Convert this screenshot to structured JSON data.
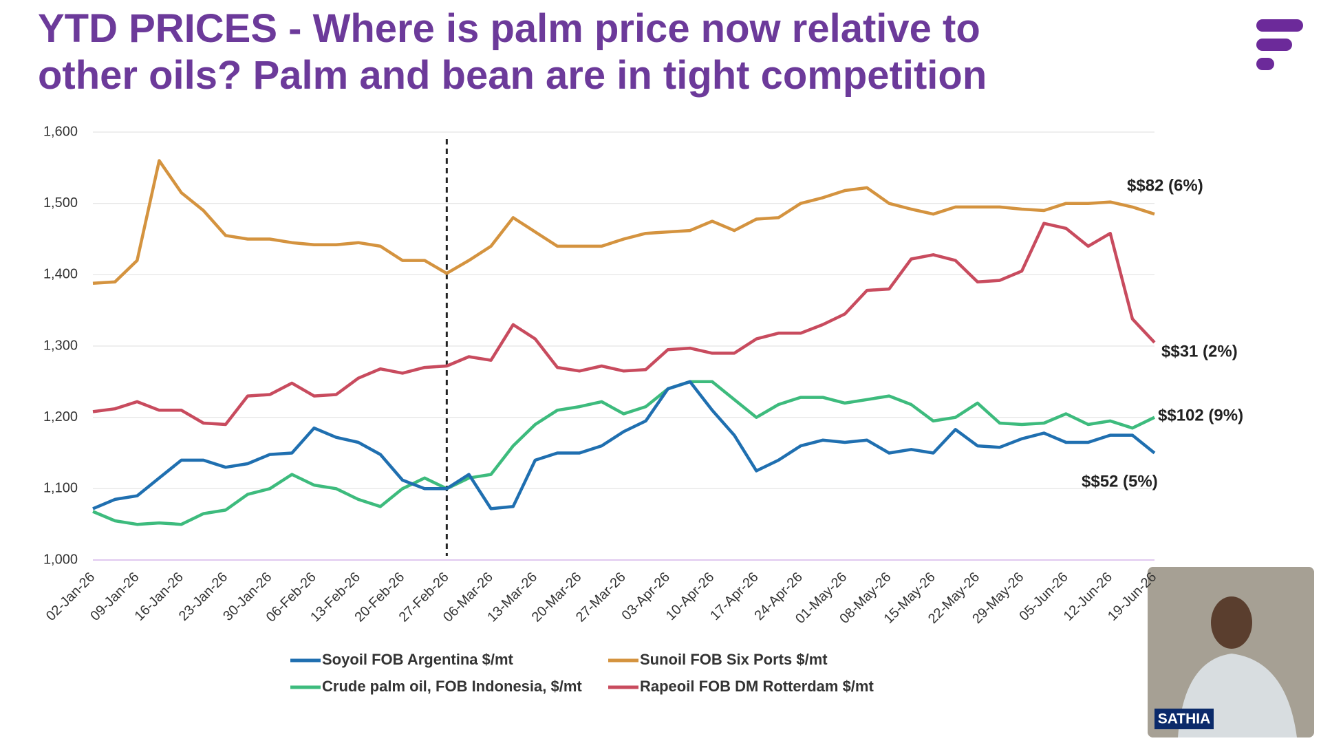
{
  "chart_data": {
    "type": "line",
    "title": [
      "YTD PRICES - Where is palm price now relative to",
      "other oils? Palm and bean are in tight competition"
    ],
    "categories": [
      "02-Jan-26",
      null,
      "09-Jan-26",
      null,
      "16-Jan-26",
      null,
      "23-Jan-26",
      null,
      "30-Jan-26",
      null,
      "06-Feb-26",
      null,
      "13-Feb-26",
      null,
      "20-Feb-26",
      null,
      "27-Feb-26",
      null,
      "06-Mar-26",
      null,
      "13-Mar-26",
      null,
      "20-Mar-26",
      null,
      "27-Mar-26",
      null,
      "03-Apr-26",
      null,
      "10-Apr-26",
      null,
      "17-Apr-26",
      null,
      "24-Apr-26",
      null,
      "01-May-26",
      null,
      "08-May-26",
      null,
      "15-May-26",
      null,
      "22-May-26",
      null,
      "29-May-26",
      null,
      "05-Jun-26",
      null,
      "12-Jun-26",
      null,
      "19-Jun-26"
    ],
    "series": [
      {
        "name": "Soyoil FOB Argentina $/mt",
        "color": "#1f6fb0",
        "values": [
          1072,
          1085,
          1090,
          1115,
          1140,
          1140,
          1130,
          1135,
          1148,
          1150,
          1185,
          1172,
          1165,
          1148,
          1112,
          1100,
          1100,
          1120,
          1072,
          1075,
          1140,
          1150,
          1150,
          1160,
          1180,
          1195,
          1240,
          1250,
          1210,
          1175,
          1125,
          1140,
          1160,
          1168,
          1165,
          1168,
          1150,
          1155,
          1150,
          1183,
          1160,
          1158,
          1170,
          1178,
          1165,
          1165,
          1175,
          1175,
          1150
        ]
      },
      {
        "name": "Sunoil FOB Six Ports $/mt",
        "color": "#d4933f",
        "values": [
          1388,
          1390,
          1420,
          1560,
          1515,
          1490,
          1455,
          1450,
          1450,
          1445,
          1442,
          1442,
          1445,
          1440,
          1420,
          1420,
          1402,
          1420,
          1440,
          1480,
          1460,
          1440,
          1440,
          1440,
          1450,
          1458,
          1460,
          1462,
          1475,
          1462,
          1478,
          1480,
          1500,
          1508,
          1518,
          1522,
          1500,
          1492,
          1485,
          1495,
          1495,
          1495,
          1492,
          1490,
          1500,
          1500,
          1502,
          1495,
          1485
        ]
      },
      {
        "name": "Crude palm oil, FOB Indonesia, $/mt",
        "color": "#3dbb7d",
        "values": [
          1068,
          1055,
          1050,
          1052,
          1050,
          1065,
          1070,
          1092,
          1100,
          1120,
          1105,
          1100,
          1085,
          1075,
          1100,
          1115,
          1100,
          1115,
          1120,
          1160,
          1190,
          1210,
          1215,
          1222,
          1205,
          1215,
          1240,
          1250,
          1250,
          1225,
          1200,
          1218,
          1228,
          1228,
          1220,
          1225,
          1230,
          1218,
          1195,
          1200,
          1220,
          1192,
          1190,
          1192,
          1205,
          1190,
          1195,
          1185,
          1200
        ]
      },
      {
        "name": "Rapeoil FOB DM Rotterdam $/mt",
        "color": "#c84b5e",
        "values": [
          1208,
          1212,
          1222,
          1210,
          1210,
          1192,
          1190,
          1230,
          1232,
          1248,
          1230,
          1232,
          1255,
          1268,
          1262,
          1270,
          1272,
          1285,
          1280,
          1330,
          1310,
          1270,
          1265,
          1272,
          1265,
          1267,
          1295,
          1297,
          1290,
          1290,
          1310,
          1318,
          1318,
          1330,
          1345,
          1378,
          1380,
          1422,
          1428,
          1420,
          1390,
          1392,
          1405,
          1472,
          1465,
          1440,
          1458,
          1338,
          1305
        ]
      }
    ],
    "annotations": [
      "$$82 (6%)",
      "$$31 (2%)",
      "$$102 (9%)",
      "$$52 (5%)"
    ],
    "ylim": [
      1000,
      1600
    ],
    "yticks": [
      {
        "value": 1000,
        "label": "1,000"
      },
      {
        "value": 1100,
        "label": "1,100"
      },
      {
        "value": 1200,
        "label": "1,200"
      },
      {
        "value": 1300,
        "label": "1,300"
      },
      {
        "value": 1400,
        "label": "1,400"
      },
      {
        "value": 1500,
        "label": "1,500"
      },
      {
        "value": 1600,
        "label": "1,600"
      }
    ],
    "grid": true
  },
  "presenter": "SATHIA"
}
